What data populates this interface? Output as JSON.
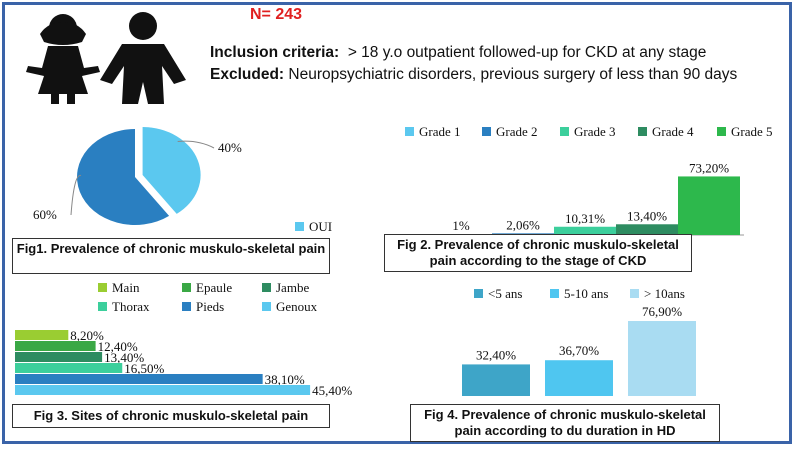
{
  "header": {
    "n_label": "N= 243",
    "inclusion_label": "Inclusion criteria:",
    "inclusion_text": "> 18 y.o outpatient followed-up for CKD at any stage",
    "excluded_label": "Excluded:",
    "excluded_text": "Neuropsychiatric disorders, previous surgery of less than 90 days"
  },
  "colors": {
    "frame": "#3a63a8",
    "n_label": "#e02020",
    "pie_oui": "#5bc8ef",
    "pie_other": "#2a7fc1"
  },
  "captions": {
    "fig1": "Fig1. Prevalence of chronic muskulo-skeletal pain",
    "fig2": "Fig 2. Prevalence of chronic muskulo-skeletal pain according to the stage of CKD",
    "fig3": "Fig 3. Sites of chronic muskulo-skeletal pain",
    "fig4": "Fig 4. Prevalence of chronic muskulo-skeletal pain according to du duration in HD"
  },
  "chart_data": [
    {
      "type": "pie",
      "title": "Fig1. Prevalence of chronic muskulo-skeletal pain",
      "slices": [
        {
          "label": "OUI",
          "value": 40,
          "data_label": "40%",
          "color": "#5bc8ef",
          "in_legend": true
        },
        {
          "label": "",
          "value": 60,
          "data_label": "60%",
          "color": "#2a7fc1",
          "in_legend": false
        }
      ],
      "legend": [
        "OUI"
      ]
    },
    {
      "type": "bar",
      "title": "Fig 2. Prevalence of chronic muskulo-skeletal pain according to the stage of CKD",
      "categories": [
        "Grade 1",
        "Grade 2",
        "Grade 3",
        "Grade 4",
        "Grade 5"
      ],
      "values": [
        1,
        2.06,
        10.31,
        13.4,
        73.2
      ],
      "data_labels": [
        "1%",
        "2,06%",
        "10,31%",
        "13,40%",
        "73,20%"
      ],
      "colors": [
        "#5bc8ef",
        "#2a7fc1",
        "#3ccf9c",
        "#2e8c61",
        "#2db84c"
      ],
      "legend": [
        "Grade 1",
        "Grade 2",
        "Grade 3",
        "Grade 4",
        "Grade 5"
      ],
      "ylim": [
        0,
        80
      ]
    },
    {
      "type": "bar",
      "orientation": "horizontal",
      "title": "Fig 3. Sites of chronic muskulo-skeletal pain",
      "categories": [
        "Main",
        "Epaule",
        "Jambe",
        "Thorax",
        "Pieds",
        "Genoux"
      ],
      "values": [
        8.2,
        12.4,
        13.4,
        16.5,
        38.1,
        45.4
      ],
      "data_labels": [
        "8,20%",
        "12,40%",
        "13,40%",
        "16,50%",
        "38,10%",
        "45,40%"
      ],
      "colors": [
        "#9acd32",
        "#3aa845",
        "#2e8c61",
        "#3ccf9c",
        "#2a7fc1",
        "#5bc8ef"
      ],
      "legend": [
        "Main",
        "Epaule",
        "Jambe",
        "Thorax",
        "Pieds",
        "Genoux"
      ],
      "xlim": [
        0,
        50
      ]
    },
    {
      "type": "bar",
      "title": "Fig 4. Prevalence of chronic muskulo-skeletal pain according to du duration in HD",
      "categories": [
        "<5 ans",
        "5-10 ans",
        "> 10ans"
      ],
      "values": [
        32.4,
        36.7,
        76.9
      ],
      "data_labels": [
        "32,40%",
        "36,70%",
        "76,90%"
      ],
      "colors": [
        "#3ea5c8",
        "#4fc6f0",
        "#a9dcf2"
      ],
      "legend": [
        "<5 ans",
        "5-10 ans",
        "> 10ans"
      ],
      "ylim": [
        0,
        80
      ]
    }
  ]
}
